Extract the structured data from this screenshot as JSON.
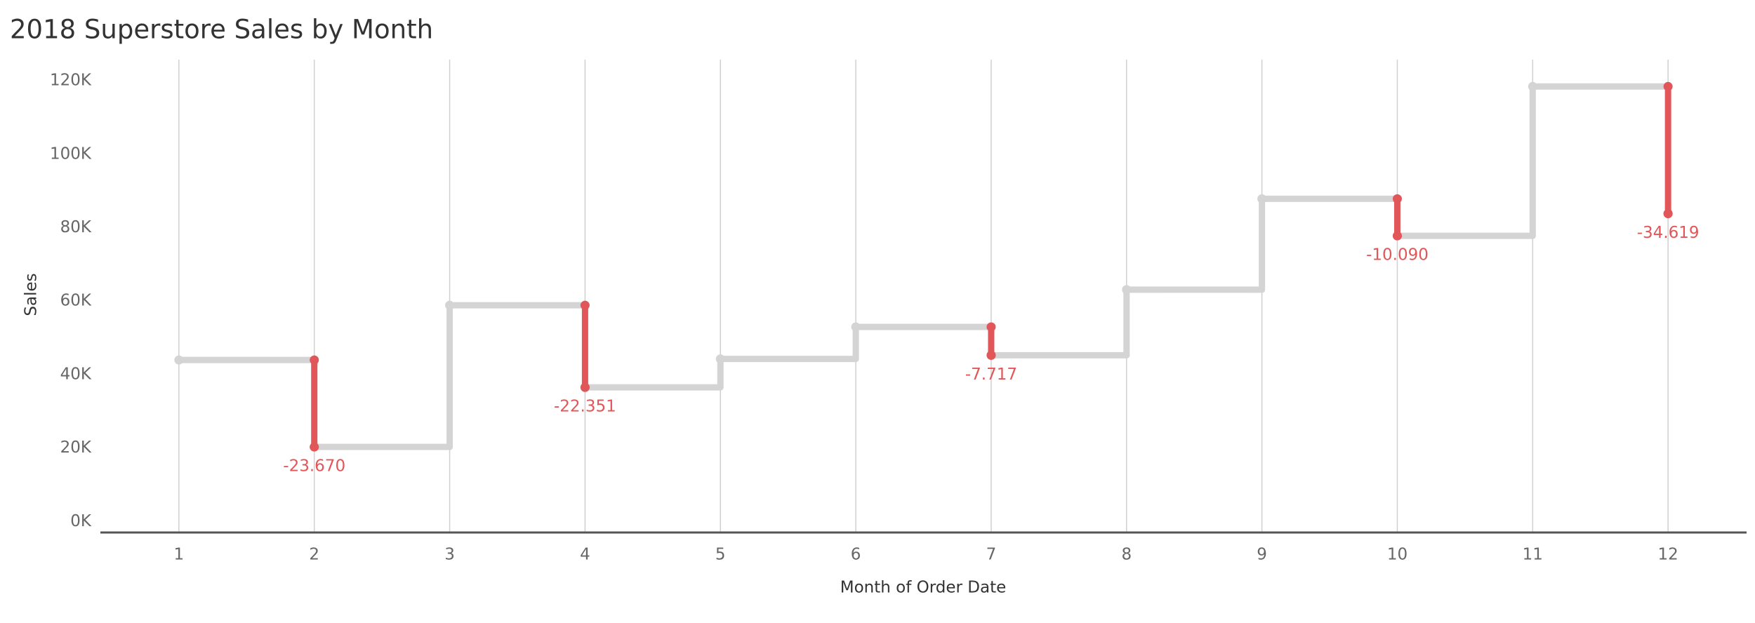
{
  "chart_data": {
    "type": "step",
    "title": "2018 Superstore Sales by Month",
    "x_label": "Month of Order Date",
    "y_label": "Sales",
    "x": [
      1,
      2,
      3,
      4,
      5,
      6,
      7,
      8,
      9,
      10,
      11,
      12
    ],
    "series": [
      {
        "color": "#d4d4d4",
        "values": [
          43971,
          20301,
          58872,
          36522,
          44261,
          52982,
          45264,
          63121,
          87867,
          77777,
          118448,
          83829
        ]
      }
    ],
    "changes": {
      "color": "#e15759",
      "x": [
        2,
        4,
        7,
        10,
        12
      ],
      "values": [
        -23670,
        -22351,
        -7717,
        -10090,
        -34619
      ],
      "value_labels": [
        "-23.670",
        "-22.351",
        "-7.717",
        "-10.090",
        "-34.619"
      ]
    },
    "xlim": [
      0.42,
      12.58
    ],
    "ylim": [
      -3000,
      125000
    ],
    "xticks": [
      1,
      2,
      3,
      4,
      5,
      6,
      7,
      8,
      9,
      10,
      11,
      12
    ],
    "yticks": [
      {
        "value": 0,
        "label": "0K"
      },
      {
        "value": 20000,
        "label": "20K"
      },
      {
        "value": 40000,
        "label": "40K"
      },
      {
        "value": 60000,
        "label": "60K"
      },
      {
        "value": 80000,
        "label": "80K"
      },
      {
        "value": 100000,
        "label": "100K"
      },
      {
        "value": 120000,
        "label": "120K"
      }
    ],
    "grid": true
  }
}
